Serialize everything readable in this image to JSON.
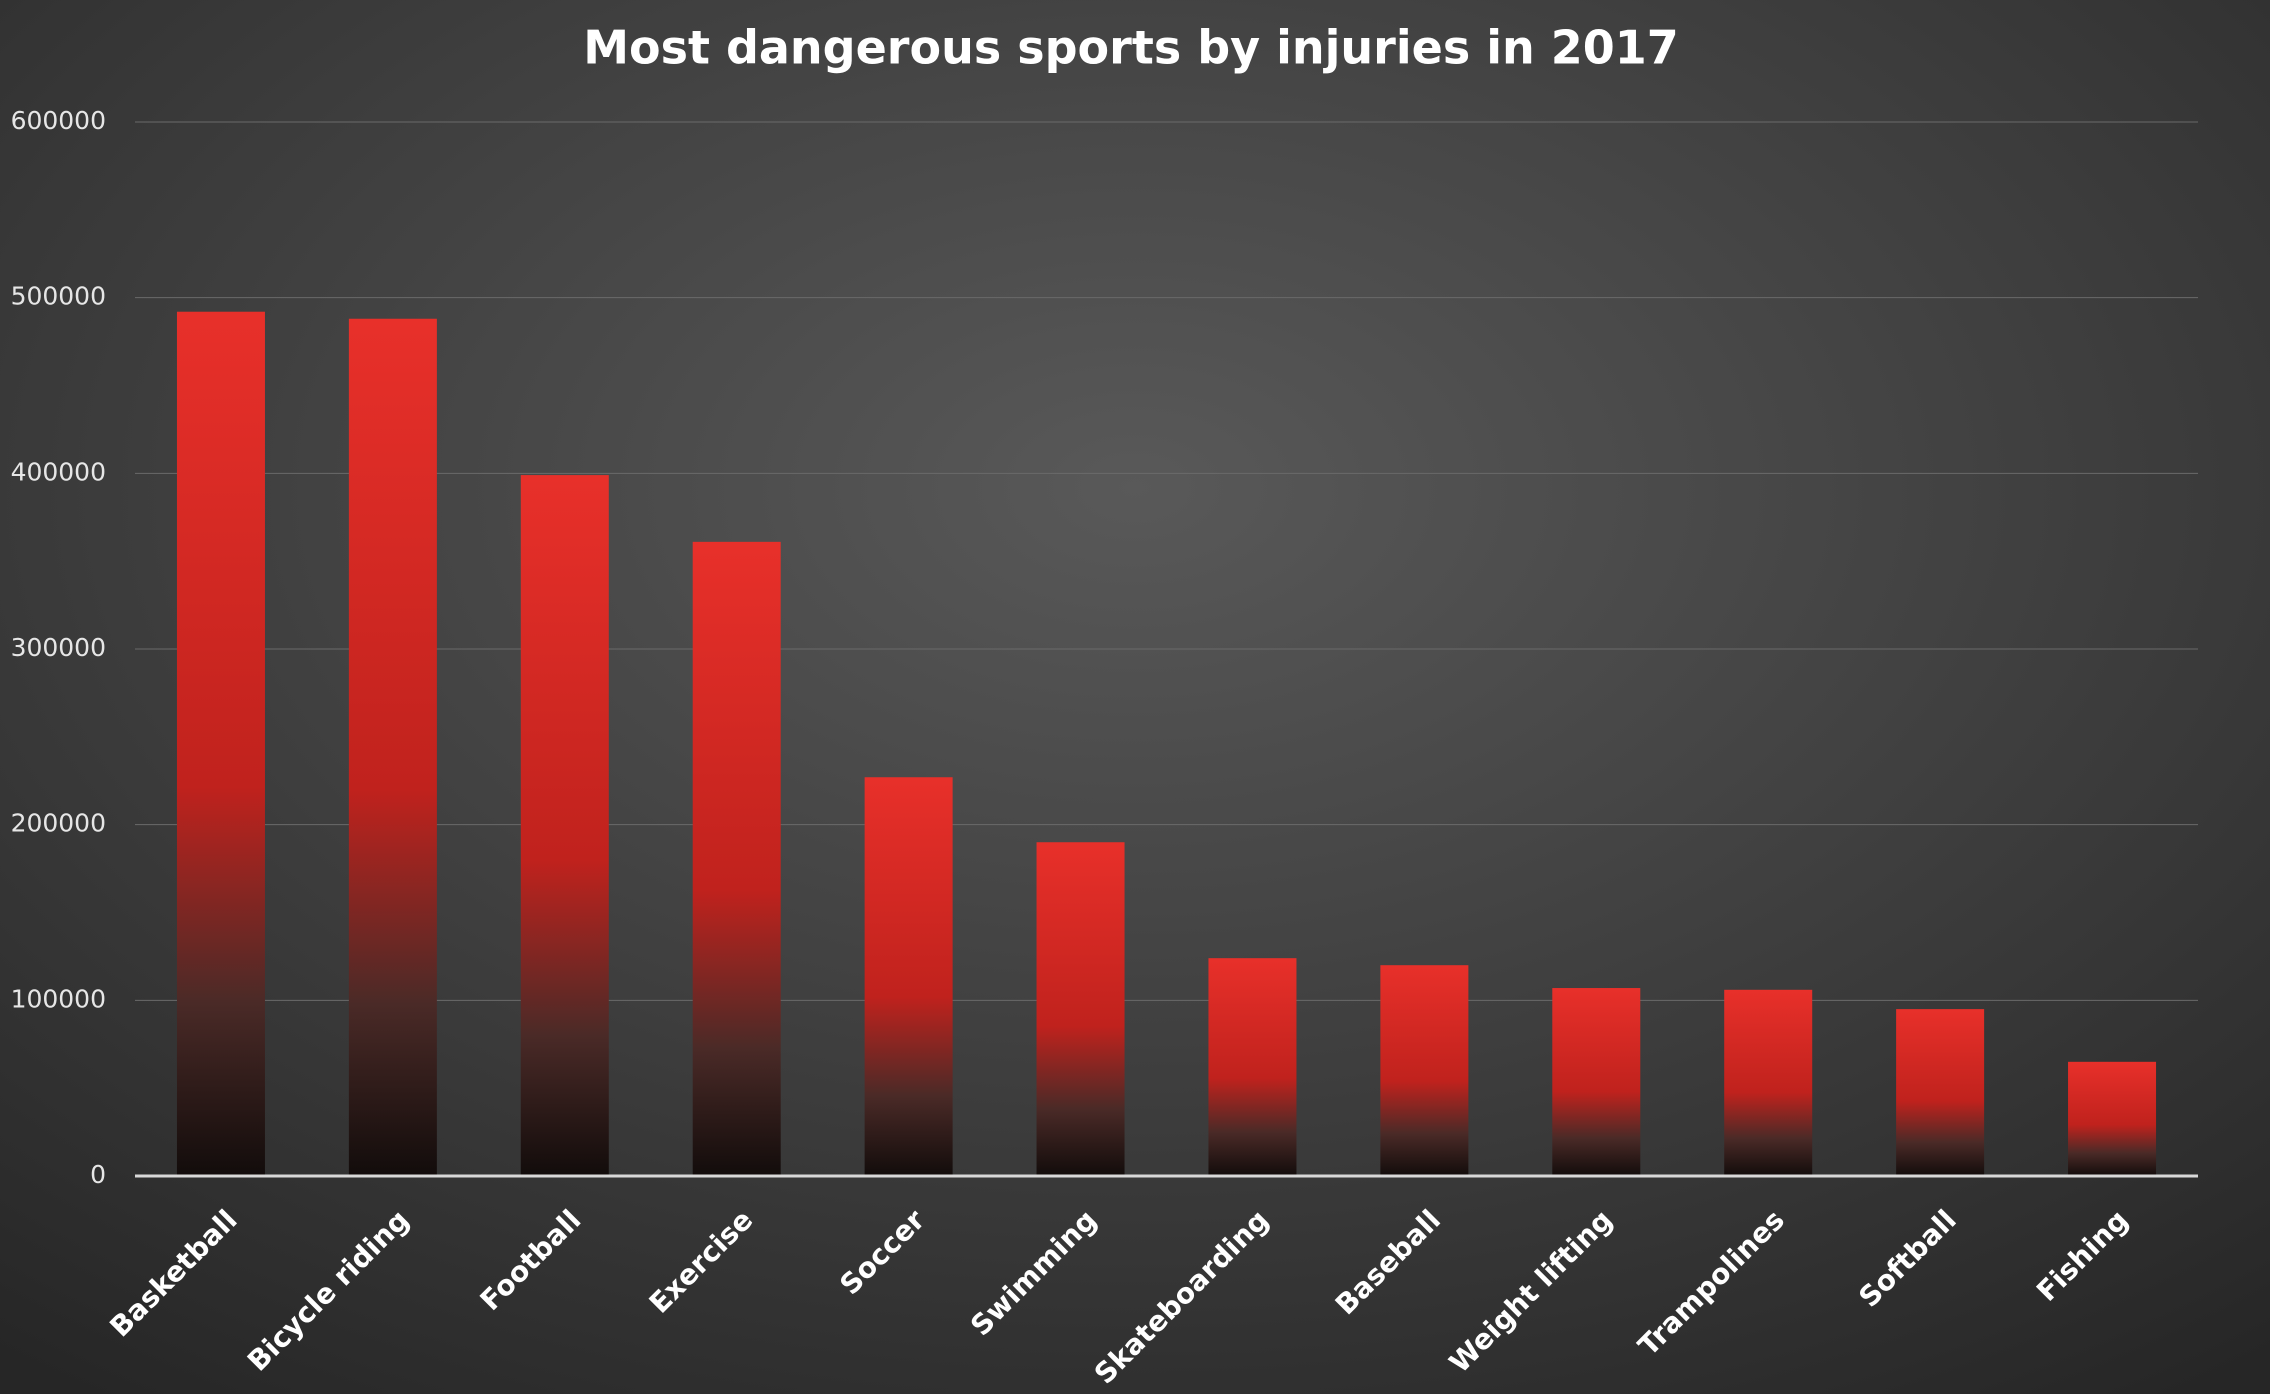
{
  "chart_data": {
    "type": "bar",
    "title": "Most dangerous sports by injuries in 2017",
    "categories": [
      "Basketball",
      "Bicycle riding",
      "Football",
      "Exercise",
      "Soccer",
      "Swimming",
      "Skateboarding",
      "Baseball",
      "Weight lifting",
      "Trampolines",
      "Softball",
      "Fishing"
    ],
    "values": [
      492000,
      488000,
      399000,
      361000,
      227000,
      190000,
      124000,
      120000,
      107000,
      106000,
      95000,
      65000
    ],
    "color": "#e8302a",
    "ylim": [
      0,
      600000
    ],
    "yticks": [
      0,
      100000,
      200000,
      300000,
      400000,
      500000,
      600000
    ],
    "grid": true
  }
}
